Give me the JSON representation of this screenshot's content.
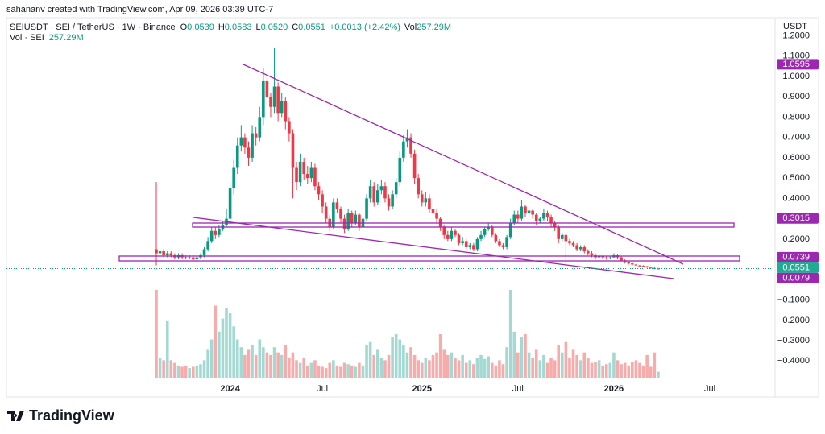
{
  "chart_data": {
    "type": "candlestick",
    "watermark": "sahananv created with TradingView.com, Apr 09, 2026 03:39 UTC-7",
    "symbol": "SEIUSDT · SEI / TetherUS · 1W · Binance",
    "ohlc_legend": [
      [
        "O",
        "0.0539"
      ],
      [
        "H",
        "0.0583"
      ],
      [
        "L",
        "0.0520"
      ],
      [
        "C",
        "0.0551"
      ]
    ],
    "change": "+0.0013 (+2.42%)",
    "volume_legend": [
      "Vol",
      "257.29M"
    ],
    "volume_title": [
      "Vol · SEI",
      "257.29M"
    ],
    "currency": "USDT",
    "brand": "TradingView",
    "up_color": "#089981",
    "down_color": "#f23645",
    "volume_up_color": "#a3d9d2",
    "volume_down_color": "#f7abab",
    "grid": false,
    "ylim": [
      -0.565,
      1.257
    ],
    "yticks": [
      {
        "value": 1.2,
        "label": "1.2000"
      },
      {
        "value": 1.1,
        "label": "1.1000"
      },
      {
        "value": 1.0,
        "label": "1.0000"
      },
      {
        "value": 0.9,
        "label": "0.9000"
      },
      {
        "value": 0.8,
        "label": "0.8000"
      },
      {
        "value": 0.7,
        "label": "0.7000"
      },
      {
        "value": 0.6,
        "label": "0.6000"
      },
      {
        "value": 0.5,
        "label": "0.5000"
      },
      {
        "value": 0.4,
        "label": "0.4000"
      },
      {
        "value": 0.3,
        "label": "0.3000"
      },
      {
        "value": 0.2,
        "label": "0.2000"
      },
      {
        "value": -0.1,
        "label": "−0.1000"
      },
      {
        "value": -0.2,
        "label": "−0.2000"
      },
      {
        "value": -0.3,
        "label": "−0.3000"
      },
      {
        "value": -0.4,
        "label": "−0.4000"
      }
    ],
    "price_labels": [
      {
        "value": 1.0595,
        "color": "#9c27b0"
      },
      {
        "value": 0.3015,
        "color": "#9c27b0"
      },
      {
        "value": 0.0739,
        "color": "#9c27b0"
      },
      {
        "value": 0.0551,
        "color": "#22ab94"
      },
      {
        "value": 0.0079,
        "color": "#9c27b0"
      }
    ],
    "categories": [
      null,
      null,
      null,
      null,
      null,
      null,
      null,
      null,
      null,
      null,
      null,
      null,
      null,
      null,
      null,
      null,
      null,
      null,
      null,
      null,
      "2024",
      null,
      null,
      null,
      null,
      null,
      null,
      null,
      null,
      null,
      null,
      null,
      null,
      null,
      null,
      null,
      null,
      null,
      null,
      null,
      null,
      null,
      null,
      null,
      null,
      "Jul",
      null,
      null,
      null,
      null,
      null,
      null,
      null,
      null,
      null,
      null,
      null,
      null,
      null,
      null,
      null,
      null,
      null,
      null,
      null,
      null,
      null,
      null,
      null,
      null,
      null,
      null,
      "2025",
      null,
      null,
      null,
      null,
      null,
      null,
      null,
      null,
      null,
      null,
      null,
      null,
      null,
      null,
      null,
      null,
      null,
      null,
      null,
      null,
      null,
      null,
      null,
      null,
      null,
      "Jul",
      null,
      null,
      null,
      null,
      null,
      null,
      null,
      null,
      null,
      null,
      null,
      null,
      null,
      null,
      null,
      null,
      null,
      null,
      null,
      null,
      null,
      null,
      null,
      null,
      null,
      "2026",
      null,
      null,
      null,
      null,
      null,
      null,
      null,
      null,
      null,
      null,
      null,
      null,
      null,
      null,
      null,
      null,
      null,
      null,
      null,
      null,
      null,
      null,
      null,
      null,
      null,
      "Jul"
    ],
    "open": [
      0.15,
      0.13,
      0.14,
      0.12,
      0.13,
      0.12,
      0.11,
      0.12,
      0.11,
      0.105,
      0.11,
      0.1,
      0.11,
      0.12,
      0.15,
      0.19,
      0.24,
      0.22,
      0.25,
      0.27,
      0.3,
      0.45,
      0.55,
      0.66,
      0.7,
      0.65,
      0.6,
      0.72,
      0.7,
      0.8,
      0.98,
      0.9,
      0.85,
      0.95,
      0.82,
      0.88,
      0.78,
      0.72,
      0.55,
      0.48,
      0.58,
      0.52,
      0.5,
      0.55,
      0.46,
      0.42,
      0.36,
      0.3,
      0.26,
      0.38,
      0.35,
      0.3,
      0.25,
      0.33,
      0.28,
      0.32,
      0.26,
      0.3,
      0.4,
      0.46,
      0.38,
      0.44,
      0.46,
      0.4,
      0.36,
      0.42,
      0.48,
      0.6,
      0.68,
      0.7,
      0.62,
      0.5,
      0.42,
      0.38,
      0.4,
      0.35,
      0.33,
      0.3,
      0.26,
      0.22,
      0.2,
      0.24,
      0.22,
      0.18,
      0.19,
      0.16,
      0.17,
      0.15,
      0.2,
      0.22,
      0.25,
      0.26,
      0.22,
      0.19,
      0.17,
      0.16,
      0.21,
      0.28,
      0.32,
      0.3,
      0.36,
      0.33,
      0.34,
      0.32,
      0.29,
      0.3,
      0.33,
      0.31,
      0.28,
      0.26,
      0.2,
      0.22,
      0.19,
      0.18,
      0.17,
      0.15,
      0.16,
      0.14,
      0.13,
      0.12,
      0.11,
      0.115,
      0.11,
      0.105,
      0.11,
      0.12,
      0.11,
      0.095,
      0.085,
      0.08,
      0.075,
      0.07,
      0.068,
      0.066,
      0.062,
      0.058,
      0.0539,
      null,
      null,
      null,
      null,
      null,
      null,
      null,
      null,
      null,
      null,
      null,
      null,
      null,
      null
    ],
    "high": [
      0.48,
      0.15,
      0.15,
      0.14,
      0.14,
      0.13,
      0.13,
      0.13,
      0.12,
      0.12,
      0.12,
      0.12,
      0.13,
      0.16,
      0.21,
      0.26,
      0.26,
      0.27,
      0.29,
      0.35,
      0.48,
      0.59,
      0.7,
      0.76,
      0.72,
      0.68,
      0.76,
      0.75,
      0.85,
      1.04,
      1.0,
      0.92,
      1.14,
      0.97,
      0.92,
      0.9,
      0.8,
      0.74,
      0.58,
      0.62,
      0.6,
      0.56,
      0.58,
      0.57,
      0.48,
      0.44,
      0.38,
      0.32,
      0.4,
      0.4,
      0.36,
      0.32,
      0.35,
      0.34,
      0.34,
      0.33,
      0.32,
      0.42,
      0.49,
      0.48,
      0.47,
      0.49,
      0.48,
      0.42,
      0.44,
      0.5,
      0.63,
      0.71,
      0.74,
      0.72,
      0.64,
      0.52,
      0.44,
      0.43,
      0.42,
      0.37,
      0.35,
      0.31,
      0.27,
      0.24,
      0.26,
      0.25,
      0.23,
      0.21,
      0.2,
      0.18,
      0.18,
      0.21,
      0.24,
      0.26,
      0.28,
      0.27,
      0.23,
      0.2,
      0.18,
      0.22,
      0.3,
      0.34,
      0.34,
      0.39,
      0.37,
      0.36,
      0.35,
      0.33,
      0.31,
      0.35,
      0.34,
      0.32,
      0.29,
      0.27,
      0.23,
      0.23,
      0.2,
      0.19,
      0.18,
      0.17,
      0.17,
      0.15,
      0.14,
      0.13,
      0.125,
      0.12,
      0.115,
      0.115,
      0.13,
      0.125,
      0.115,
      0.1,
      0.09,
      0.083,
      0.078,
      0.073,
      0.071,
      0.068,
      0.064,
      0.06,
      0.0583,
      null,
      null,
      null,
      null,
      null,
      null,
      null,
      null,
      null,
      null,
      null,
      null,
      null,
      null
    ],
    "low": [
      0.07,
      0.12,
      0.11,
      0.11,
      0.11,
      0.1,
      0.1,
      0.1,
      0.1,
      0.1,
      0.095,
      0.095,
      0.1,
      0.11,
      0.14,
      0.18,
      0.2,
      0.21,
      0.24,
      0.26,
      0.28,
      0.42,
      0.52,
      0.63,
      0.62,
      0.56,
      0.58,
      0.66,
      0.68,
      0.76,
      0.86,
      0.8,
      0.82,
      0.78,
      0.8,
      0.74,
      0.68,
      0.4,
      0.44,
      0.46,
      0.49,
      0.47,
      0.48,
      0.44,
      0.39,
      0.33,
      0.28,
      0.24,
      0.25,
      0.33,
      0.28,
      0.23,
      0.24,
      0.26,
      0.27,
      0.24,
      0.25,
      0.29,
      0.38,
      0.36,
      0.37,
      0.42,
      0.38,
      0.34,
      0.35,
      0.4,
      0.46,
      0.58,
      0.65,
      0.6,
      0.47,
      0.4,
      0.36,
      0.36,
      0.33,
      0.31,
      0.28,
      0.24,
      0.2,
      0.19,
      0.19,
      0.21,
      0.17,
      0.17,
      0.15,
      0.15,
      0.14,
      0.14,
      0.19,
      0.21,
      0.24,
      0.21,
      0.18,
      0.16,
      0.15,
      0.15,
      0.2,
      0.27,
      0.28,
      0.29,
      0.31,
      0.31,
      0.3,
      0.27,
      0.28,
      0.29,
      0.29,
      0.26,
      0.24,
      0.18,
      0.19,
      0.08,
      0.17,
      0.16,
      0.14,
      0.14,
      0.13,
      0.12,
      0.11,
      0.1,
      0.105,
      0.1,
      0.098,
      0.1,
      0.105,
      0.1,
      0.09,
      0.08,
      0.075,
      0.07,
      0.066,
      0.064,
      0.062,
      0.058,
      0.054,
      0.051,
      0.052,
      null,
      null,
      null,
      null,
      null,
      null,
      null,
      null,
      null,
      null,
      null,
      null,
      null,
      null
    ],
    "close": [
      0.13,
      0.14,
      0.12,
      0.13,
      0.12,
      0.11,
      0.12,
      0.11,
      0.105,
      0.11,
      0.1,
      0.11,
      0.12,
      0.15,
      0.19,
      0.24,
      0.22,
      0.25,
      0.27,
      0.3,
      0.45,
      0.55,
      0.66,
      0.7,
      0.65,
      0.6,
      0.72,
      0.7,
      0.8,
      0.98,
      0.9,
      0.85,
      0.95,
      0.82,
      0.88,
      0.78,
      0.72,
      0.55,
      0.48,
      0.58,
      0.52,
      0.5,
      0.55,
      0.46,
      0.42,
      0.36,
      0.3,
      0.26,
      0.38,
      0.35,
      0.3,
      0.25,
      0.33,
      0.28,
      0.32,
      0.26,
      0.3,
      0.4,
      0.46,
      0.38,
      0.44,
      0.46,
      0.4,
      0.36,
      0.42,
      0.48,
      0.6,
      0.68,
      0.7,
      0.62,
      0.5,
      0.42,
      0.38,
      0.4,
      0.35,
      0.33,
      0.3,
      0.26,
      0.22,
      0.2,
      0.24,
      0.22,
      0.18,
      0.19,
      0.16,
      0.17,
      0.15,
      0.2,
      0.22,
      0.25,
      0.26,
      0.22,
      0.19,
      0.17,
      0.16,
      0.21,
      0.28,
      0.32,
      0.3,
      0.36,
      0.33,
      0.34,
      0.32,
      0.29,
      0.3,
      0.33,
      0.31,
      0.28,
      0.26,
      0.2,
      0.22,
      0.19,
      0.18,
      0.17,
      0.15,
      0.16,
      0.14,
      0.13,
      0.12,
      0.11,
      0.115,
      0.11,
      0.105,
      0.11,
      0.12,
      0.11,
      0.095,
      0.085,
      0.08,
      0.075,
      0.07,
      0.068,
      0.066,
      0.062,
      0.058,
      0.0539,
      0.0551,
      null,
      null,
      null,
      null,
      null,
      null,
      null,
      null,
      null,
      null,
      null,
      null,
      null,
      null
    ],
    "volume": [
      3400,
      800,
      700,
      2200,
      700,
      600,
      500,
      450,
      500,
      400,
      450,
      500,
      550,
      700,
      1100,
      1500,
      2800,
      1800,
      2300,
      2700,
      2500,
      2000,
      1500,
      1200,
      900,
      1100,
      1300,
      900,
      1500,
      1200,
      1000,
      900,
      1200,
      1000,
      900,
      1300,
      800,
      1000,
      700,
      600,
      800,
      500,
      600,
      700,
      500,
      450,
      400,
      600,
      700,
      500,
      450,
      600,
      550,
      500,
      450,
      600,
      500,
      1300,
      1400,
      900,
      1100,
      800,
      700,
      900,
      1600,
      1700,
      1500,
      1300,
      1000,
      1200,
      900,
      700,
      600,
      800,
      700,
      900,
      1000,
      1700,
      1100,
      900,
      1000,
      800,
      700,
      900,
      600,
      700,
      550,
      800,
      900,
      750,
      850,
      600,
      500,
      700,
      550,
      1200,
      3400,
      1800,
      1000,
      1600,
      1700,
      1000,
      800,
      1100,
      700,
      900,
      600,
      800,
      700,
      1300,
      1000,
      1400,
      800,
      1100,
      900,
      700,
      1000,
      800,
      600,
      650,
      700,
      500,
      550,
      600,
      1000,
      700,
      550,
      600,
      500,
      650,
      700,
      600,
      500,
      900,
      450,
      1000,
      257.29,
      null,
      null,
      null,
      null,
      null,
      null,
      null,
      null,
      null,
      null,
      null,
      null,
      null,
      null
    ]
  }
}
